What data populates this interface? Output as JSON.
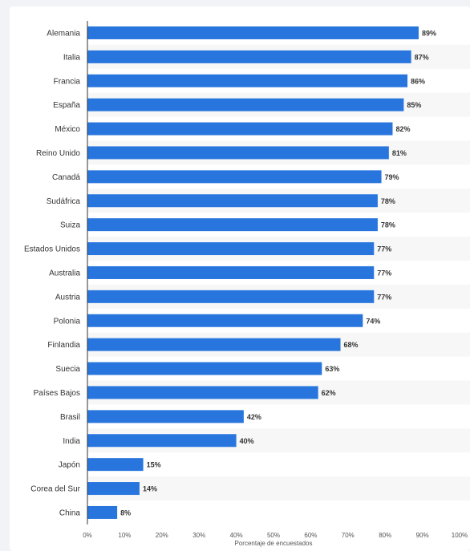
{
  "chart_data": {
    "type": "bar",
    "orientation": "horizontal",
    "categories": [
      "Alemania",
      "Italia",
      "Francia",
      "España",
      "México",
      "Reino Unido",
      "Canadá",
      "Sudáfrica",
      "Suiza",
      "Estados Unidos",
      "Australia",
      "Austria",
      "Polonia",
      "Finlandia",
      "Suecia",
      "Países Bajos",
      "Brasil",
      "India",
      "Japón",
      "Corea del Sur",
      "China"
    ],
    "values": [
      89,
      87,
      86,
      85,
      82,
      81,
      79,
      78,
      78,
      77,
      77,
      77,
      74,
      68,
      63,
      62,
      42,
      40,
      15,
      14,
      8
    ],
    "value_labels": [
      "89%",
      "87%",
      "86%",
      "85%",
      "82%",
      "81%",
      "79%",
      "78%",
      "78%",
      "77%",
      "77%",
      "77%",
      "74%",
      "68%",
      "63%",
      "62%",
      "42%",
      "40%",
      "15%",
      "14%",
      "8%"
    ],
    "xlabel": "Porcentaje de encuestados",
    "xlim": [
      0,
      100
    ],
    "xticks": [
      "0%",
      "10%",
      "20%",
      "30%",
      "40%",
      "50%",
      "60%",
      "70%",
      "80%",
      "90%",
      "100%"
    ],
    "grid": false,
    "legend": "none"
  },
  "colors": {
    "bar": "#2876dd",
    "stripe": "#f7f7f7",
    "axis": "#333333"
  }
}
